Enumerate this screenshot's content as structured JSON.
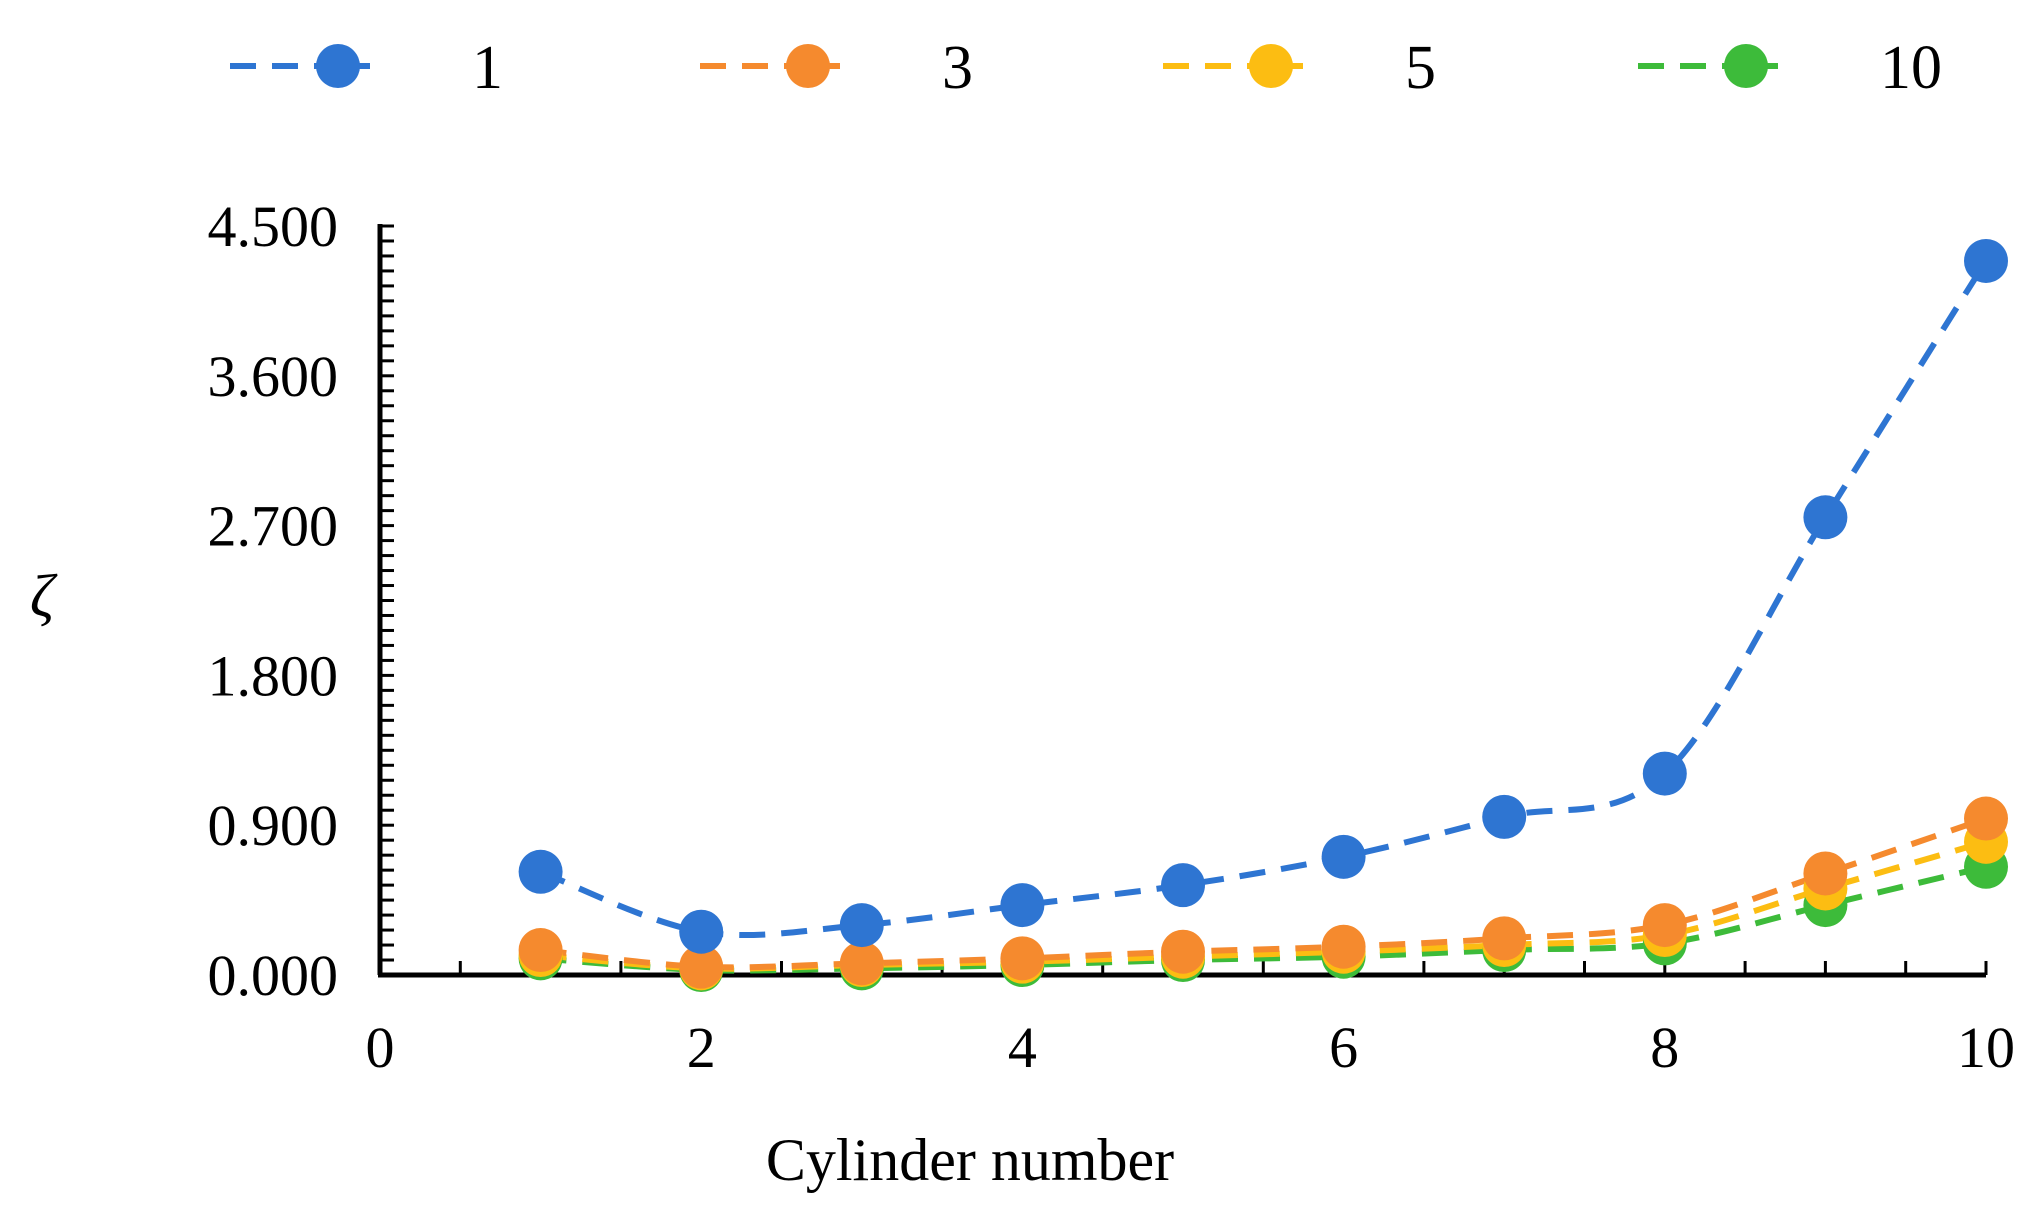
{
  "chart_data": {
    "type": "line",
    "title": "",
    "xlabel": "Cylinder number",
    "ylabel": "ζ",
    "xlim": [
      0,
      10
    ],
    "ylim": [
      0,
      4.5
    ],
    "x_ticks": [
      "0",
      "2",
      "4",
      "6",
      "8",
      "10"
    ],
    "y_ticks": [
      "0.000",
      "0.900",
      "1.800",
      "2.700",
      "3.600",
      "4.500"
    ],
    "legend_position": "top",
    "x": [
      1,
      2,
      3,
      4,
      5,
      6,
      7,
      8,
      9,
      10
    ],
    "series": [
      {
        "name": "1",
        "color": "#2e75d2",
        "values": [
          0.62,
          0.26,
          0.3,
          0.42,
          0.54,
          0.71,
          0.95,
          1.21,
          2.75,
          4.29
        ]
      },
      {
        "name": "3",
        "color": "#f58a2e",
        "values": [
          0.15,
          0.05,
          0.07,
          0.1,
          0.14,
          0.17,
          0.22,
          0.3,
          0.61,
          0.94
        ]
      },
      {
        "name": "5",
        "color": "#fcbd12",
        "values": [
          0.12,
          0.04,
          0.06,
          0.08,
          0.11,
          0.14,
          0.18,
          0.24,
          0.52,
          0.8
        ]
      },
      {
        "name": "10",
        "color": "#3dbb3a",
        "values": [
          0.1,
          0.03,
          0.04,
          0.06,
          0.09,
          0.11,
          0.15,
          0.19,
          0.42,
          0.65
        ]
      }
    ]
  }
}
